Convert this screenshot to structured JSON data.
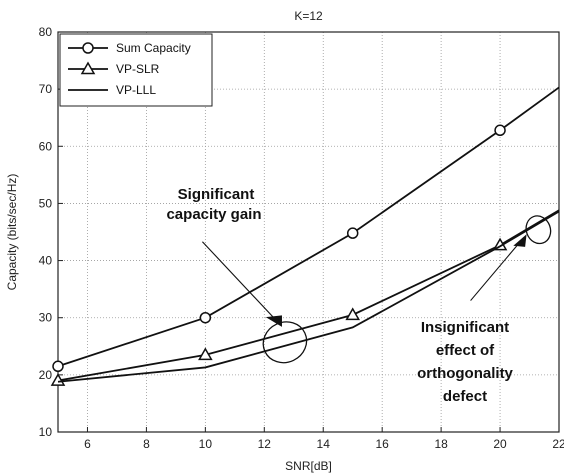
{
  "chart_data": {
    "type": "line",
    "title": "K=12",
    "xlabel": "SNR[dB]",
    "ylabel": "Capacity (bits/sec/Hz)",
    "xlim": [
      5,
      22
    ],
    "ylim": [
      10,
      80
    ],
    "xticks": [
      6,
      8,
      10,
      12,
      14,
      16,
      18,
      20,
      22
    ],
    "yticks": [
      10,
      20,
      30,
      40,
      50,
      60,
      70,
      80
    ],
    "grid": true,
    "legend_position": "top-left",
    "series": [
      {
        "name": "Sum Capacity",
        "marker": "circle",
        "x": [
          5,
          10,
          15,
          20,
          22
        ],
        "y": [
          21.5,
          30,
          44.8,
          62.8,
          70.3
        ],
        "markers_at": [
          5,
          10,
          15,
          20
        ]
      },
      {
        "name": "VP-SLR",
        "marker": "triangle",
        "x": [
          5,
          10,
          15,
          20,
          22
        ],
        "y": [
          19,
          23.5,
          30.5,
          42.7,
          48.8
        ],
        "markers_at": [
          5,
          10,
          15,
          20
        ]
      },
      {
        "name": "VP-LLL",
        "marker": "none",
        "x": [
          5,
          10,
          15,
          20,
          22
        ],
        "y": [
          18.8,
          21.3,
          28.3,
          42.5,
          48.6
        ],
        "markers_at": []
      }
    ],
    "annotations": [
      {
        "lines": [
          "Significant",
          "capacity gain"
        ]
      },
      {
        "lines": [
          "Insignificant",
          "effect of",
          "orthogonality",
          "defect"
        ]
      }
    ]
  }
}
